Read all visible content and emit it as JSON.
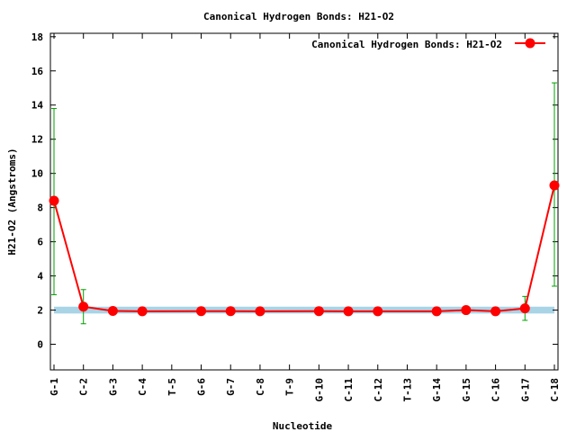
{
  "chart_data": {
    "type": "line",
    "title": "Canonical Hydrogen Bonds: H21-O2",
    "xlabel": "Nucleotide",
    "ylabel": "H21-O2 (Angstroms)",
    "ylim": [
      -1.5,
      18.2
    ],
    "yticks": [
      0,
      2,
      4,
      6,
      8,
      10,
      12,
      14,
      16,
      18
    ],
    "categories": [
      "G-1",
      "C-2",
      "G-3",
      "C-4",
      "T-5",
      "G-6",
      "G-7",
      "C-8",
      "T-9",
      "G-10",
      "C-11",
      "C-12",
      "T-13",
      "G-14",
      "G-15",
      "C-16",
      "G-17",
      "C-18"
    ],
    "reference_band": {
      "low": 1.8,
      "high": 2.2,
      "color": "#a8d4e6"
    },
    "legend_position": "top-right",
    "grid": false,
    "series": [
      {
        "name": "Canonical Hydrogen Bonds: H21-O2",
        "color": "#ff0000",
        "errorbar_color": "#00a000",
        "points": [
          {
            "x": "G-1",
            "y": 8.4,
            "err_low": 2.9,
            "err_high": 13.8
          },
          {
            "x": "C-2",
            "y": 2.2,
            "err_low": 1.2,
            "err_high": 3.2
          },
          {
            "x": "G-3",
            "y": 1.95
          },
          {
            "x": "C-4",
            "y": 1.93
          },
          {
            "x": "G-6",
            "y": 1.94
          },
          {
            "x": "G-7",
            "y": 1.94
          },
          {
            "x": "C-8",
            "y": 1.93
          },
          {
            "x": "G-10",
            "y": 1.94
          },
          {
            "x": "C-11",
            "y": 1.93
          },
          {
            "x": "C-12",
            "y": 1.93
          },
          {
            "x": "G-14",
            "y": 1.93
          },
          {
            "x": "G-15",
            "y": 2.0
          },
          {
            "x": "C-16",
            "y": 1.93
          },
          {
            "x": "G-17",
            "y": 2.1,
            "err_low": 1.4,
            "err_high": 2.8
          },
          {
            "x": "C-18",
            "y": 9.3,
            "err_low": 3.4,
            "err_high": 15.3
          }
        ]
      }
    ]
  }
}
